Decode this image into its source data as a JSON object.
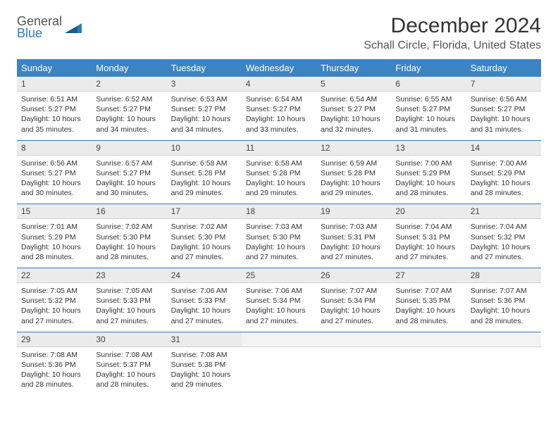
{
  "logo": {
    "line1": "General",
    "line2": "Blue"
  },
  "title": "December 2024",
  "location": "Schall Circle, Florida, United States",
  "colors": {
    "header_bg": "#3b84c4",
    "header_fg": "#ffffff",
    "row_divider": "#2b7bbf",
    "daynum_bg": "#ebebeb",
    "logo_blue": "#2b7bbf"
  },
  "weekdays": [
    "Sunday",
    "Monday",
    "Tuesday",
    "Wednesday",
    "Thursday",
    "Friday",
    "Saturday"
  ],
  "days": [
    {
      "n": "1",
      "sr": "Sunrise: 6:51 AM",
      "ss": "Sunset: 5:27 PM",
      "d1": "Daylight: 10 hours",
      "d2": "and 35 minutes."
    },
    {
      "n": "2",
      "sr": "Sunrise: 6:52 AM",
      "ss": "Sunset: 5:27 PM",
      "d1": "Daylight: 10 hours",
      "d2": "and 34 minutes."
    },
    {
      "n": "3",
      "sr": "Sunrise: 6:53 AM",
      "ss": "Sunset: 5:27 PM",
      "d1": "Daylight: 10 hours",
      "d2": "and 34 minutes."
    },
    {
      "n": "4",
      "sr": "Sunrise: 6:54 AM",
      "ss": "Sunset: 5:27 PM",
      "d1": "Daylight: 10 hours",
      "d2": "and 33 minutes."
    },
    {
      "n": "5",
      "sr": "Sunrise: 6:54 AM",
      "ss": "Sunset: 5:27 PM",
      "d1": "Daylight: 10 hours",
      "d2": "and 32 minutes."
    },
    {
      "n": "6",
      "sr": "Sunrise: 6:55 AM",
      "ss": "Sunset: 5:27 PM",
      "d1": "Daylight: 10 hours",
      "d2": "and 31 minutes."
    },
    {
      "n": "7",
      "sr": "Sunrise: 6:56 AM",
      "ss": "Sunset: 5:27 PM",
      "d1": "Daylight: 10 hours",
      "d2": "and 31 minutes."
    },
    {
      "n": "8",
      "sr": "Sunrise: 6:56 AM",
      "ss": "Sunset: 5:27 PM",
      "d1": "Daylight: 10 hours",
      "d2": "and 30 minutes."
    },
    {
      "n": "9",
      "sr": "Sunrise: 6:57 AM",
      "ss": "Sunset: 5:27 PM",
      "d1": "Daylight: 10 hours",
      "d2": "and 30 minutes."
    },
    {
      "n": "10",
      "sr": "Sunrise: 6:58 AM",
      "ss": "Sunset: 5:28 PM",
      "d1": "Daylight: 10 hours",
      "d2": "and 29 minutes."
    },
    {
      "n": "11",
      "sr": "Sunrise: 6:58 AM",
      "ss": "Sunset: 5:28 PM",
      "d1": "Daylight: 10 hours",
      "d2": "and 29 minutes."
    },
    {
      "n": "12",
      "sr": "Sunrise: 6:59 AM",
      "ss": "Sunset: 5:28 PM",
      "d1": "Daylight: 10 hours",
      "d2": "and 29 minutes."
    },
    {
      "n": "13",
      "sr": "Sunrise: 7:00 AM",
      "ss": "Sunset: 5:29 PM",
      "d1": "Daylight: 10 hours",
      "d2": "and 28 minutes."
    },
    {
      "n": "14",
      "sr": "Sunrise: 7:00 AM",
      "ss": "Sunset: 5:29 PM",
      "d1": "Daylight: 10 hours",
      "d2": "and 28 minutes."
    },
    {
      "n": "15",
      "sr": "Sunrise: 7:01 AM",
      "ss": "Sunset: 5:29 PM",
      "d1": "Daylight: 10 hours",
      "d2": "and 28 minutes."
    },
    {
      "n": "16",
      "sr": "Sunrise: 7:02 AM",
      "ss": "Sunset: 5:30 PM",
      "d1": "Daylight: 10 hours",
      "d2": "and 28 minutes."
    },
    {
      "n": "17",
      "sr": "Sunrise: 7:02 AM",
      "ss": "Sunset: 5:30 PM",
      "d1": "Daylight: 10 hours",
      "d2": "and 27 minutes."
    },
    {
      "n": "18",
      "sr": "Sunrise: 7:03 AM",
      "ss": "Sunset: 5:30 PM",
      "d1": "Daylight: 10 hours",
      "d2": "and 27 minutes."
    },
    {
      "n": "19",
      "sr": "Sunrise: 7:03 AM",
      "ss": "Sunset: 5:31 PM",
      "d1": "Daylight: 10 hours",
      "d2": "and 27 minutes."
    },
    {
      "n": "20",
      "sr": "Sunrise: 7:04 AM",
      "ss": "Sunset: 5:31 PM",
      "d1": "Daylight: 10 hours",
      "d2": "and 27 minutes."
    },
    {
      "n": "21",
      "sr": "Sunrise: 7:04 AM",
      "ss": "Sunset: 5:32 PM",
      "d1": "Daylight: 10 hours",
      "d2": "and 27 minutes."
    },
    {
      "n": "22",
      "sr": "Sunrise: 7:05 AM",
      "ss": "Sunset: 5:32 PM",
      "d1": "Daylight: 10 hours",
      "d2": "and 27 minutes."
    },
    {
      "n": "23",
      "sr": "Sunrise: 7:05 AM",
      "ss": "Sunset: 5:33 PM",
      "d1": "Daylight: 10 hours",
      "d2": "and 27 minutes."
    },
    {
      "n": "24",
      "sr": "Sunrise: 7:06 AM",
      "ss": "Sunset: 5:33 PM",
      "d1": "Daylight: 10 hours",
      "d2": "and 27 minutes."
    },
    {
      "n": "25",
      "sr": "Sunrise: 7:06 AM",
      "ss": "Sunset: 5:34 PM",
      "d1": "Daylight: 10 hours",
      "d2": "and 27 minutes."
    },
    {
      "n": "26",
      "sr": "Sunrise: 7:07 AM",
      "ss": "Sunset: 5:34 PM",
      "d1": "Daylight: 10 hours",
      "d2": "and 27 minutes."
    },
    {
      "n": "27",
      "sr": "Sunrise: 7:07 AM",
      "ss": "Sunset: 5:35 PM",
      "d1": "Daylight: 10 hours",
      "d2": "and 28 minutes."
    },
    {
      "n": "28",
      "sr": "Sunrise: 7:07 AM",
      "ss": "Sunset: 5:36 PM",
      "d1": "Daylight: 10 hours",
      "d2": "and 28 minutes."
    },
    {
      "n": "29",
      "sr": "Sunrise: 7:08 AM",
      "ss": "Sunset: 5:36 PM",
      "d1": "Daylight: 10 hours",
      "d2": "and 28 minutes."
    },
    {
      "n": "30",
      "sr": "Sunrise: 7:08 AM",
      "ss": "Sunset: 5:37 PM",
      "d1": "Daylight: 10 hours",
      "d2": "and 28 minutes."
    },
    {
      "n": "31",
      "sr": "Sunrise: 7:08 AM",
      "ss": "Sunset: 5:38 PM",
      "d1": "Daylight: 10 hours",
      "d2": "and 29 minutes."
    }
  ]
}
